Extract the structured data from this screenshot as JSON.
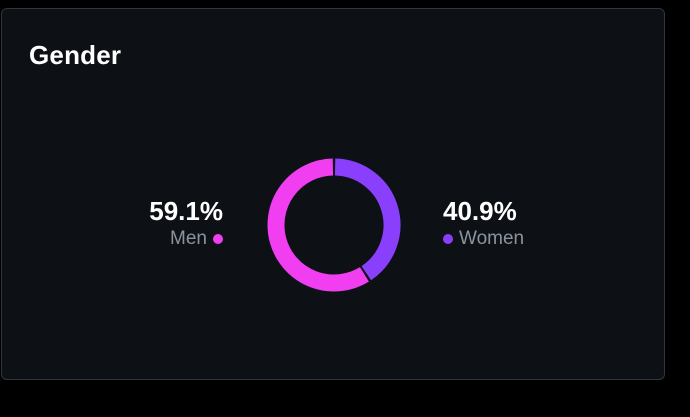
{
  "card": {
    "title": "Gender"
  },
  "chart_data": {
    "type": "pie",
    "variant": "donut",
    "title": "Gender",
    "series": [
      {
        "name": "Women",
        "value": 40.9,
        "label": "40.9%",
        "color": "#8a3ffc"
      },
      {
        "name": "Men",
        "value": 59.1,
        "label": "59.1%",
        "color": "#f03ef0"
      }
    ]
  },
  "colors": {
    "background": "#0d1116",
    "border": "#30363d",
    "text_primary": "#ffffff",
    "text_secondary": "#8b949e",
    "men": "#f03ef0",
    "women": "#8a3ffc"
  }
}
